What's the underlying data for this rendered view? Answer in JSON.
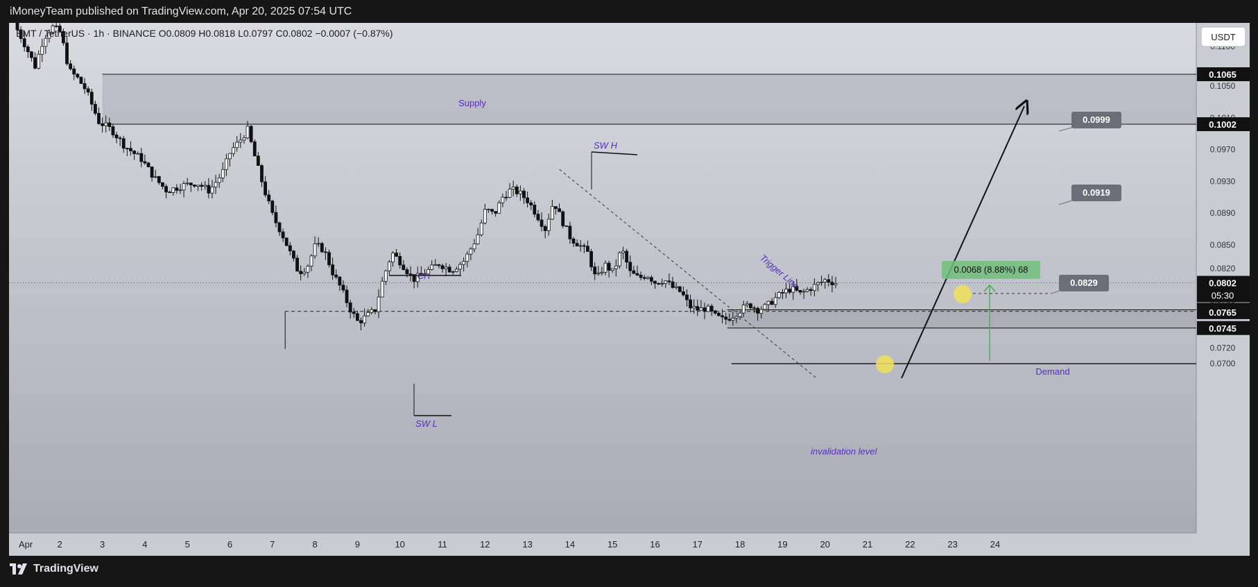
{
  "header": {
    "publisher_line": "iMoneyTeam published on TradingView.com, Apr 20, 2025 07:54 UTC"
  },
  "symbol_info": {
    "symbol": "BMT / TetherUS",
    "interval": "1h",
    "exchange": "BINANCE",
    "ohlc_text": "O0.0809  H0.0818  L0.0797  C0.0802  −0.0007 (−0.87%)"
  },
  "currency_button": "USDT",
  "footer": {
    "brand": "TradingView"
  },
  "colors": {
    "chart_bg_top": "#d6d8de",
    "chart_bg_bottom": "#a9acb6",
    "candle": "#111111",
    "zone_fill": "#9ea1ab",
    "annotation_purple": "#5a2bc4",
    "measure_green": "#2fb34a",
    "badge_gray": "#6b6e78",
    "highlight_yellow": "#f0e05a"
  },
  "annotations": {
    "supply": "Supply",
    "demand": "Demand",
    "sw_h": "SW H",
    "sw_l": "SW L",
    "ch": "CH",
    "trigger_line": "Trigger Line",
    "invalidation": "invalidation level",
    "measure_label": "0.0068 (8.88%) 68",
    "target_badges": [
      "0.0999",
      "0.0919",
      "0.0829"
    ]
  },
  "price_axis": {
    "badges": [
      {
        "label": "0.1065",
        "style": "line"
      },
      {
        "label": "0.1002",
        "style": "line"
      },
      {
        "label": "0.0802",
        "style": "current",
        "countdown": "05:30"
      },
      {
        "label": "0.0768",
        "style": "line"
      },
      {
        "label": "0.0765",
        "style": "line"
      },
      {
        "label": "0.0745",
        "style": "line"
      }
    ]
  },
  "chart_data": {
    "type": "candlestick",
    "title": "BMT / TetherUS · 1h · BINANCE",
    "x_axis": {
      "tick_labels": [
        "Apr",
        "2",
        "3",
        "4",
        "5",
        "6",
        "7",
        "8",
        "9",
        "10",
        "11",
        "12",
        "13",
        "14",
        "15",
        "16",
        "17",
        "18",
        "19",
        "20",
        "21",
        "22",
        "23",
        "24"
      ],
      "range": [
        "2025-04-01",
        "2025-04-24"
      ]
    },
    "y_axis": {
      "tick_labels": [
        "0.1100",
        "0.1050",
        "0.1010",
        "0.0970",
        "0.0930",
        "0.0890",
        "0.0850",
        "0.0820",
        "0.0780",
        "0.0740",
        "0.0720",
        "0.0700"
      ],
      "range": [
        0.068,
        0.1125
      ]
    },
    "grid": false,
    "levels": {
      "supply_zone": [
        0.1002,
        0.1065
      ],
      "demand_zone": [
        0.0745,
        0.0768
      ],
      "invalidation": 0.07,
      "ch_level": 0.0766,
      "current_price": 0.0802,
      "targets": [
        0.0999,
        0.0919,
        0.0829
      ]
    },
    "measurement": {
      "from": 0.0768,
      "to": 0.0836,
      "change": 0.0068,
      "percent": 8.88,
      "bars": 68
    },
    "path_points": [
      {
        "day": 1.0,
        "price": 0.113
      },
      {
        "day": 1.3,
        "price": 0.1098
      },
      {
        "day": 1.5,
        "price": 0.1075
      },
      {
        "day": 1.7,
        "price": 0.111
      },
      {
        "day": 1.9,
        "price": 0.1125
      },
      {
        "day": 2.1,
        "price": 0.1118
      },
      {
        "day": 2.3,
        "price": 0.107
      },
      {
        "day": 2.5,
        "price": 0.106
      },
      {
        "day": 2.7,
        "price": 0.1045
      },
      {
        "day": 3.0,
        "price": 0.1005
      },
      {
        "day": 3.3,
        "price": 0.0995
      },
      {
        "day": 3.6,
        "price": 0.0975
      },
      {
        "day": 4.0,
        "price": 0.0958
      },
      {
        "day": 4.3,
        "price": 0.0935
      },
      {
        "day": 4.6,
        "price": 0.0918
      },
      {
        "day": 5.0,
        "price": 0.0925
      },
      {
        "day": 5.3,
        "price": 0.0928
      },
      {
        "day": 5.6,
        "price": 0.0918
      },
      {
        "day": 5.9,
        "price": 0.094
      },
      {
        "day": 6.1,
        "price": 0.0968
      },
      {
        "day": 6.3,
        "price": 0.098
      },
      {
        "day": 6.5,
        "price": 0.0995
      },
      {
        "day": 6.7,
        "price": 0.0955
      },
      {
        "day": 6.9,
        "price": 0.0918
      },
      {
        "day": 7.1,
        "price": 0.0885
      },
      {
        "day": 7.3,
        "price": 0.0865
      },
      {
        "day": 7.5,
        "price": 0.084
      },
      {
        "day": 7.7,
        "price": 0.0815
      },
      {
        "day": 7.9,
        "price": 0.0822
      },
      {
        "day": 8.1,
        "price": 0.085
      },
      {
        "day": 8.3,
        "price": 0.0843
      },
      {
        "day": 8.5,
        "price": 0.0815
      },
      {
        "day": 8.7,
        "price": 0.0795
      },
      {
        "day": 8.9,
        "price": 0.077
      },
      {
        "day": 9.1,
        "price": 0.0752
      },
      {
        "day": 9.3,
        "price": 0.076
      },
      {
        "day": 9.5,
        "price": 0.0768
      },
      {
        "day": 9.7,
        "price": 0.081
      },
      {
        "day": 9.9,
        "price": 0.084
      },
      {
        "day": 10.1,
        "price": 0.0828
      },
      {
        "day": 10.4,
        "price": 0.0806
      },
      {
        "day": 10.7,
        "price": 0.0816
      },
      {
        "day": 11.0,
        "price": 0.0826
      },
      {
        "day": 11.3,
        "price": 0.0818
      },
      {
        "day": 11.6,
        "price": 0.083
      },
      {
        "day": 11.9,
        "price": 0.086
      },
      {
        "day": 12.1,
        "price": 0.0895
      },
      {
        "day": 12.3,
        "price": 0.0888
      },
      {
        "day": 12.5,
        "price": 0.091
      },
      {
        "day": 12.7,
        "price": 0.092
      },
      {
        "day": 12.9,
        "price": 0.0915
      },
      {
        "day": 13.1,
        "price": 0.0905
      },
      {
        "day": 13.3,
        "price": 0.0888
      },
      {
        "day": 13.5,
        "price": 0.087
      },
      {
        "day": 13.7,
        "price": 0.0905
      },
      {
        "day": 13.9,
        "price": 0.088
      },
      {
        "day": 14.1,
        "price": 0.0858
      },
      {
        "day": 14.3,
        "price": 0.085
      },
      {
        "day": 14.5,
        "price": 0.084
      },
      {
        "day": 14.7,
        "price": 0.0805
      },
      {
        "day": 14.9,
        "price": 0.0825
      },
      {
        "day": 15.1,
        "price": 0.0815
      },
      {
        "day": 15.3,
        "price": 0.0845
      },
      {
        "day": 15.5,
        "price": 0.0815
      },
      {
        "day": 15.7,
        "price": 0.0808
      },
      {
        "day": 15.9,
        "price": 0.0812
      },
      {
        "day": 16.1,
        "price": 0.0802
      },
      {
        "day": 16.3,
        "price": 0.0806
      },
      {
        "day": 16.5,
        "price": 0.0796
      },
      {
        "day": 16.7,
        "price": 0.079
      },
      {
        "day": 16.9,
        "price": 0.0772
      },
      {
        "day": 17.1,
        "price": 0.0768
      },
      {
        "day": 17.3,
        "price": 0.077
      },
      {
        "day": 17.5,
        "price": 0.076
      },
      {
        "day": 17.7,
        "price": 0.0755
      },
      {
        "day": 17.9,
        "price": 0.076
      },
      {
        "day": 18.1,
        "price": 0.0768
      },
      {
        "day": 18.3,
        "price": 0.0775
      },
      {
        "day": 18.5,
        "price": 0.0768
      },
      {
        "day": 18.7,
        "price": 0.0772
      },
      {
        "day": 18.9,
        "price": 0.0782
      },
      {
        "day": 19.1,
        "price": 0.079
      },
      {
        "day": 19.3,
        "price": 0.0795
      },
      {
        "day": 19.5,
        "price": 0.0788
      },
      {
        "day": 19.7,
        "price": 0.0794
      },
      {
        "day": 19.9,
        "price": 0.08
      },
      {
        "day": 20.1,
        "price": 0.0806
      },
      {
        "day": 20.3,
        "price": 0.0802
      }
    ]
  }
}
